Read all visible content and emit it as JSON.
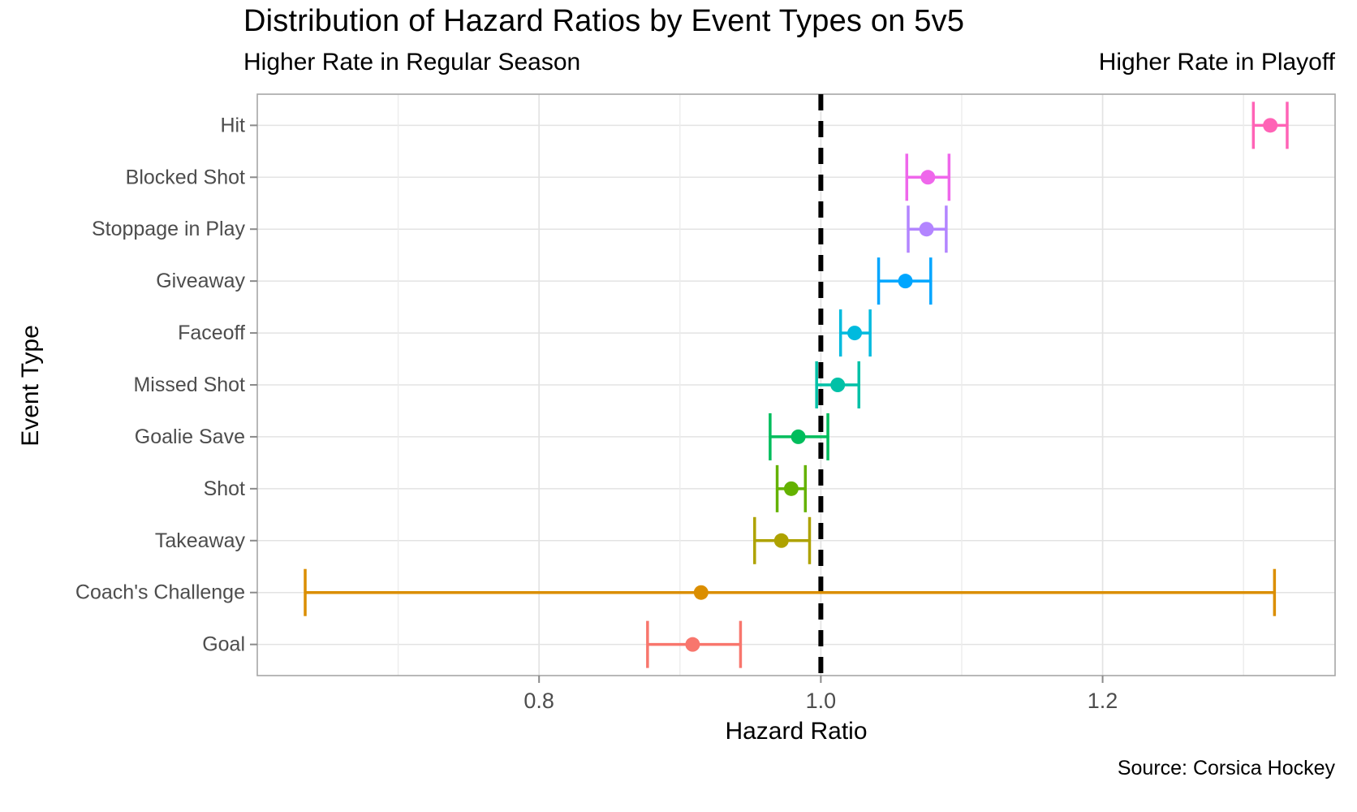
{
  "chart_data": {
    "type": "scatter",
    "variant": "horizontal dot-and-whisker (forest) plot",
    "title": "Distribution of Hazard Ratios by Event Types on 5v5",
    "subtitle_left": "Higher Rate in Regular Season",
    "subtitle_right": "Higher Rate in Playoff",
    "xlabel": "Hazard Ratio",
    "ylabel": "Event Type",
    "caption": "Source: Corsica Hockey",
    "xlim": [
      0.6,
      1.365
    ],
    "x_ticks": [
      0.8,
      1.0,
      1.2
    ],
    "x_tick_labels": [
      "0.8",
      "1.0",
      "1.2"
    ],
    "x_minor_gridlines": [
      0.7,
      0.9,
      1.1,
      1.3
    ],
    "reference_line_x": 1.0,
    "grid": true,
    "legend": "none",
    "rows": [
      {
        "label": "Hit",
        "estimate": 1.319,
        "ci_low": 1.307,
        "ci_high": 1.331,
        "color": "#FF63B6"
      },
      {
        "label": "Blocked Shot",
        "estimate": 1.076,
        "ci_low": 1.061,
        "ci_high": 1.091,
        "color": "#EF67EB"
      },
      {
        "label": "Stoppage in Play",
        "estimate": 1.075,
        "ci_low": 1.062,
        "ci_high": 1.089,
        "color": "#B385FF"
      },
      {
        "label": "Giveaway",
        "estimate": 1.06,
        "ci_low": 1.041,
        "ci_high": 1.078,
        "color": "#00A6FF"
      },
      {
        "label": "Faceoff",
        "estimate": 1.024,
        "ci_low": 1.014,
        "ci_high": 1.035,
        "color": "#00BADE"
      },
      {
        "label": "Missed Shot",
        "estimate": 1.012,
        "ci_low": 0.997,
        "ci_high": 1.027,
        "color": "#00C1A7"
      },
      {
        "label": "Goalie Save",
        "estimate": 0.984,
        "ci_low": 0.964,
        "ci_high": 1.005,
        "color": "#00BD5C"
      },
      {
        "label": "Shot",
        "estimate": 0.979,
        "ci_low": 0.969,
        "ci_high": 0.989,
        "color": "#64B200"
      },
      {
        "label": "Takeaway",
        "estimate": 0.972,
        "ci_low": 0.953,
        "ci_high": 0.992,
        "color": "#AEA200"
      },
      {
        "label": "Coach's Challenge",
        "estimate": 0.915,
        "ci_low": 0.634,
        "ci_high": 1.322,
        "color": "#DB8E00"
      },
      {
        "label": "Goal",
        "estimate": 0.909,
        "ci_low": 0.877,
        "ci_high": 0.943,
        "color": "#F8766D"
      }
    ],
    "style": {
      "background": "#FFFFFF",
      "grid_major": "#E3E3E3",
      "grid_minor": "#ECECEC",
      "panel_border": "#A6A6A6",
      "tick_mark": "#8A8A8A",
      "axis_text": "#4D4D4D",
      "reference_line": "#000000"
    }
  }
}
